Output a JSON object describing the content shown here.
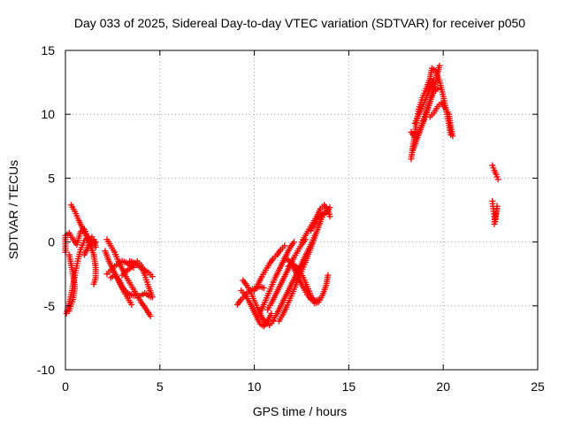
{
  "chart_data": {
    "type": "scatter",
    "title": "Day 033 of 2025, Sidereal Day-to-day VTEC variation (SDTVAR) for receiver p050",
    "xlabel": "GPS time / hours",
    "ylabel": "SDTVAR / TECUs",
    "xlim": [
      0,
      25
    ],
    "ylim": [
      -10,
      15
    ],
    "xticks": [
      0,
      5,
      10,
      15,
      20,
      25
    ],
    "yticks": [
      -10,
      -5,
      0,
      5,
      10,
      15
    ],
    "xtick_labels": [
      "0",
      "5",
      "10",
      "15",
      "20",
      "25"
    ],
    "ytick_labels": [
      "-10",
      "-5",
      "0",
      "5",
      "10",
      "15"
    ],
    "grid": true,
    "marker": "+",
    "color": "#ff0000",
    "series": [
      {
        "name": "SDTVAR",
        "tracks": [
          [
            [
              0.0,
              -0.8
            ],
            [
              0.0,
              0.5
            ],
            [
              0.2,
              0.7
            ],
            [
              0.4,
              0.2
            ],
            [
              0.6,
              -0.2
            ],
            [
              0.8,
              0.8
            ],
            [
              1.0,
              1.0
            ],
            [
              1.2,
              0.3
            ],
            [
              1.4,
              -0.1
            ],
            [
              1.6,
              0.0
            ]
          ],
          [
            [
              0.05,
              -5.6
            ],
            [
              0.2,
              -4.8
            ],
            [
              0.35,
              -3.8
            ],
            [
              0.5,
              -2.6
            ],
            [
              0.65,
              -1.5
            ],
            [
              0.8,
              -0.6
            ],
            [
              1.0,
              0.1
            ],
            [
              1.2,
              0.4
            ]
          ],
          [
            [
              0.3,
              2.9
            ],
            [
              0.5,
              2.4
            ],
            [
              0.7,
              1.7
            ],
            [
              0.9,
              1.1
            ],
            [
              1.1,
              0.5
            ],
            [
              1.3,
              -0.2
            ],
            [
              1.5,
              -1.0
            ],
            [
              1.6,
              -2.0
            ],
            [
              1.6,
              -2.8
            ],
            [
              1.5,
              -3.3
            ]
          ],
          [
            [
              0.2,
              -1.0
            ],
            [
              0.4,
              -2.5
            ],
            [
              0.5,
              -3.5
            ],
            [
              0.4,
              -4.5
            ],
            [
              0.2,
              -5.4
            ]
          ],
          [
            [
              1.0,
              -1.0
            ],
            [
              1.2,
              -0.4
            ],
            [
              1.4,
              0.4
            ],
            [
              1.5,
              0.2
            ],
            [
              1.6,
              -0.4
            ]
          ],
          [
            [
              2.2,
              0.2
            ],
            [
              2.4,
              -0.3
            ],
            [
              2.6,
              -0.8
            ],
            [
              2.8,
              -1.5
            ],
            [
              3.0,
              -2.1
            ],
            [
              3.2,
              -2.7
            ],
            [
              3.4,
              -3.2
            ],
            [
              3.6,
              -3.7
            ],
            [
              3.8,
              -4.2
            ],
            [
              4.0,
              -4.7
            ],
            [
              4.2,
              -5.1
            ],
            [
              4.5,
              -5.8
            ]
          ],
          [
            [
              2.1,
              -0.7
            ],
            [
              2.3,
              -1.5
            ],
            [
              2.5,
              -2.1
            ],
            [
              2.7,
              -2.7
            ],
            [
              2.9,
              -3.3
            ],
            [
              3.1,
              -3.9
            ],
            [
              3.3,
              -4.4
            ],
            [
              3.5,
              -4.9
            ]
          ],
          [
            [
              2.2,
              -2.5
            ],
            [
              2.4,
              -2.2
            ],
            [
              2.6,
              -1.9
            ],
            [
              2.8,
              -1.7
            ],
            [
              3.0,
              -1.5
            ],
            [
              3.2,
              -1.6
            ],
            [
              3.4,
              -1.8
            ],
            [
              3.6,
              -2.0
            ]
          ],
          [
            [
              2.4,
              -2.8
            ],
            [
              2.6,
              -2.6
            ],
            [
              2.8,
              -2.9
            ],
            [
              3.0,
              -3.5
            ],
            [
              3.2,
              -3.9
            ],
            [
              3.4,
              -4.1
            ],
            [
              3.6,
              -4.2
            ],
            [
              3.8,
              -4.2
            ],
            [
              4.0,
              -4.2
            ],
            [
              4.2,
              -4.0
            ],
            [
              4.5,
              -4.3
            ]
          ],
          [
            [
              3.4,
              -1.5
            ],
            [
              3.6,
              -1.6
            ],
            [
              3.8,
              -1.8
            ],
            [
              4.0,
              -2.0
            ],
            [
              4.2,
              -2.2
            ],
            [
              4.4,
              -2.4
            ],
            [
              4.6,
              -2.7
            ]
          ],
          [
            [
              3.0,
              -2.6
            ],
            [
              3.2,
              -2.3
            ],
            [
              3.4,
              -2.1
            ],
            [
              3.6,
              -1.8
            ],
            [
              3.8,
              -1.5
            ],
            [
              4.0,
              -1.8
            ],
            [
              4.2,
              -2.6
            ],
            [
              4.4,
              -3.5
            ],
            [
              4.6,
              -4.3
            ]
          ],
          [
            [
              9.1,
              -4.9
            ],
            [
              9.3,
              -4.5
            ],
            [
              9.5,
              -4.2
            ],
            [
              9.7,
              -3.9
            ],
            [
              9.9,
              -3.7
            ],
            [
              10.1,
              -3.6
            ],
            [
              10.3,
              -3.5
            ],
            [
              10.5,
              -3.6
            ]
          ],
          [
            [
              9.3,
              -3.8
            ],
            [
              9.5,
              -4.1
            ],
            [
              9.7,
              -4.6
            ],
            [
              9.9,
              -5.2
            ],
            [
              10.1,
              -5.8
            ],
            [
              10.3,
              -6.4
            ],
            [
              10.5,
              -6.6
            ],
            [
              10.7,
              -6.2
            ],
            [
              10.9,
              -5.6
            ]
          ],
          [
            [
              9.4,
              -3.0
            ],
            [
              9.6,
              -3.4
            ],
            [
              9.8,
              -3.9
            ],
            [
              10.0,
              -4.6
            ],
            [
              10.2,
              -5.3
            ],
            [
              10.4,
              -5.9
            ],
            [
              10.6,
              -6.3
            ],
            [
              10.8,
              -6.5
            ],
            [
              11.0,
              -6.2
            ]
          ],
          [
            [
              10.0,
              -3.8
            ],
            [
              10.2,
              -3.3
            ],
            [
              10.4,
              -2.7
            ],
            [
              10.6,
              -2.2
            ],
            [
              10.8,
              -1.7
            ],
            [
              11.0,
              -1.3
            ],
            [
              11.2,
              -1.0
            ],
            [
              11.4,
              -0.6
            ],
            [
              11.6,
              -0.3
            ]
          ],
          [
            [
              10.3,
              -5.5
            ],
            [
              10.5,
              -4.9
            ],
            [
              10.7,
              -4.2
            ],
            [
              10.9,
              -3.5
            ],
            [
              11.1,
              -2.8
            ],
            [
              11.3,
              -2.2
            ],
            [
              11.5,
              -1.6
            ],
            [
              11.7,
              -1.0
            ],
            [
              11.9,
              -0.4
            ],
            [
              12.1,
              0.0
            ]
          ],
          [
            [
              10.7,
              -5.3
            ],
            [
              10.9,
              -4.8
            ],
            [
              11.1,
              -4.2
            ],
            [
              11.3,
              -3.6
            ],
            [
              11.5,
              -3.0
            ],
            [
              11.7,
              -2.4
            ],
            [
              11.9,
              -1.8
            ],
            [
              12.1,
              -1.2
            ],
            [
              12.3,
              -0.7
            ],
            [
              12.5,
              -0.2
            ],
            [
              12.7,
              0.2
            ]
          ],
          [
            [
              11.0,
              -6.1
            ],
            [
              11.2,
              -5.6
            ],
            [
              11.4,
              -5.0
            ],
            [
              11.6,
              -4.4
            ],
            [
              11.8,
              -3.8
            ],
            [
              12.0,
              -3.2
            ],
            [
              12.2,
              -2.6
            ],
            [
              12.4,
              -2.0
            ],
            [
              12.6,
              -1.4
            ],
            [
              12.8,
              -0.8
            ],
            [
              13.0,
              -0.2
            ],
            [
              13.2,
              0.5
            ]
          ],
          [
            [
              11.3,
              -6.2
            ],
            [
              11.5,
              -5.7
            ],
            [
              11.7,
              -5.1
            ],
            [
              11.9,
              -4.4
            ],
            [
              12.1,
              -3.7
            ],
            [
              12.3,
              -3.0
            ],
            [
              12.5,
              -2.3
            ],
            [
              12.7,
              -1.6
            ],
            [
              12.9,
              -0.8
            ],
            [
              13.1,
              0.0
            ],
            [
              13.3,
              0.8
            ],
            [
              13.5,
              1.6
            ],
            [
              13.7,
              2.3
            ]
          ],
          [
            [
              11.8,
              -1.9
            ],
            [
              12.0,
              -1.7
            ],
            [
              12.2,
              -1.9
            ],
            [
              12.4,
              -2.3
            ],
            [
              12.6,
              -2.8
            ],
            [
              12.8,
              -3.5
            ],
            [
              13.0,
              -4.2
            ],
            [
              13.2,
              -4.8
            ],
            [
              13.4,
              -4.7
            ],
            [
              13.6,
              -4.2
            ],
            [
              13.8,
              -3.4
            ],
            [
              13.9,
              -2.6
            ]
          ],
          [
            [
              11.6,
              -1.3
            ],
            [
              11.8,
              -1.4
            ],
            [
              12.0,
              -1.8
            ],
            [
              12.2,
              -2.4
            ],
            [
              12.4,
              -3.0
            ],
            [
              12.6,
              -3.6
            ],
            [
              12.8,
              -4.1
            ],
            [
              13.0,
              -4.5
            ],
            [
              13.2,
              -4.6
            ],
            [
              13.4,
              -4.5
            ]
          ],
          [
            [
              12.5,
              0.0
            ],
            [
              12.7,
              0.5
            ],
            [
              12.9,
              1.0
            ],
            [
              13.1,
              1.5
            ],
            [
              13.3,
              2.0
            ],
            [
              13.5,
              2.6
            ],
            [
              13.7,
              2.9
            ],
            [
              13.9,
              2.5
            ],
            [
              14.0,
              2.0
            ]
          ],
          [
            [
              13.0,
              0.9
            ],
            [
              13.2,
              1.4
            ],
            [
              13.4,
              1.9
            ],
            [
              13.6,
              2.2
            ],
            [
              13.8,
              2.3
            ],
            [
              14.0,
              2.7
            ]
          ],
          [
            [
              18.3,
              6.5
            ],
            [
              18.4,
              7.5
            ],
            [
              18.5,
              8.5
            ],
            [
              18.6,
              9.5
            ],
            [
              18.7,
              10.4
            ],
            [
              18.9,
              11.3
            ],
            [
              19.1,
              12.0
            ],
            [
              19.3,
              12.8
            ],
            [
              19.4,
              13.6
            ],
            [
              19.6,
              13.4
            ],
            [
              19.8,
              12.6
            ],
            [
              20.0,
              11.4
            ],
            [
              20.2,
              10.0
            ],
            [
              20.4,
              8.4
            ]
          ],
          [
            [
              18.4,
              7.2
            ],
            [
              18.6,
              8.0
            ],
            [
              18.8,
              8.8
            ],
            [
              19.0,
              9.6
            ],
            [
              19.2,
              10.5
            ],
            [
              19.4,
              11.5
            ],
            [
              19.6,
              12.5
            ],
            [
              19.7,
              13.2
            ],
            [
              19.8,
              13.8
            ]
          ],
          [
            [
              18.3,
              8.6
            ],
            [
              18.5,
              8.2
            ],
            [
              18.7,
              8.6
            ],
            [
              18.9,
              9.3
            ],
            [
              19.1,
              10.2
            ],
            [
              19.3,
              11.0
            ],
            [
              19.5,
              11.8
            ],
            [
              19.7,
              12.0
            ]
          ],
          [
            [
              18.5,
              9.3
            ],
            [
              18.7,
              10.0
            ],
            [
              18.9,
              10.6
            ],
            [
              19.1,
              11.3
            ],
            [
              19.3,
              12.1
            ],
            [
              19.5,
              12.7
            ]
          ],
          [
            [
              19.3,
              9.8
            ],
            [
              19.5,
              10.1
            ],
            [
              19.7,
              10.6
            ],
            [
              19.9,
              10.9
            ],
            [
              20.1,
              10.5
            ],
            [
              20.3,
              10.0
            ],
            [
              20.4,
              9.0
            ],
            [
              20.5,
              8.3
            ]
          ],
          [
            [
              22.6,
              6.0
            ],
            [
              22.7,
              5.6
            ],
            [
              22.8,
              5.3
            ],
            [
              22.9,
              4.9
            ]
          ],
          [
            [
              22.6,
              3.2
            ],
            [
              22.65,
              2.6
            ],
            [
              22.7,
              2.0
            ],
            [
              22.75,
              1.6
            ],
            [
              22.8,
              2.2
            ],
            [
              22.85,
              2.8
            ],
            [
              22.7,
              1.4
            ]
          ]
        ]
      }
    ]
  }
}
